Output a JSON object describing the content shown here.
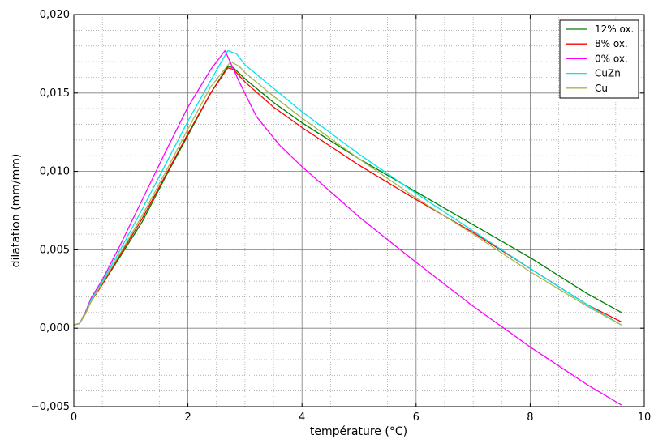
{
  "chart_data": {
    "type": "line",
    "xlabel": "température (°C)",
    "ylabel": "dilatation (mm/mm)",
    "xlim": [
      0,
      10
    ],
    "ylim": [
      -0.005,
      0.02
    ],
    "x_ticks": [
      0,
      2,
      4,
      6,
      8,
      10
    ],
    "x_tick_labels": [
      "0",
      "2",
      "4",
      "6",
      "8",
      "10"
    ],
    "y_ticks": [
      -0.005,
      0,
      0.005,
      0.01,
      0.015,
      0.02
    ],
    "y_tick_labels": [
      "−0,005",
      "0,000",
      "0,005",
      "0,010",
      "0,015",
      "0,020"
    ],
    "grid": "major solid + minor dotted",
    "legend_position": "top-right",
    "series": [
      {
        "name": "12% ox.",
        "color": "#007f00",
        "points": [
          [
            0,
            0.0002
          ],
          [
            0.1,
            0.0003
          ],
          [
            0.2,
            0.0009
          ],
          [
            0.3,
            0.0017
          ],
          [
            0.5,
            0.0028
          ],
          [
            0.8,
            0.0045
          ],
          [
            1.2,
            0.0068
          ],
          [
            1.6,
            0.0096
          ],
          [
            2.0,
            0.0123
          ],
          [
            2.4,
            0.015
          ],
          [
            2.7,
            0.0167
          ],
          [
            2.8,
            0.0166
          ],
          [
            3.0,
            0.0159
          ],
          [
            3.5,
            0.0144
          ],
          [
            4.0,
            0.0131
          ],
          [
            5.0,
            0.0108
          ],
          [
            6.0,
            0.0087
          ],
          [
            7.0,
            0.0066
          ],
          [
            8.0,
            0.0045
          ],
          [
            9.0,
            0.0022
          ],
          [
            9.6,
            0.001
          ]
        ]
      },
      {
        "name": "8% ox.",
        "color": "#ff0000",
        "points": [
          [
            0,
            0.0002
          ],
          [
            0.1,
            0.0003
          ],
          [
            0.2,
            0.0009
          ],
          [
            0.3,
            0.0017
          ],
          [
            0.5,
            0.0028
          ],
          [
            0.8,
            0.0046
          ],
          [
            1.2,
            0.007
          ],
          [
            1.6,
            0.0097
          ],
          [
            2.0,
            0.0124
          ],
          [
            2.4,
            0.015
          ],
          [
            2.7,
            0.0166
          ],
          [
            2.8,
            0.0165
          ],
          [
            3.0,
            0.0157
          ],
          [
            3.5,
            0.0141
          ],
          [
            4.0,
            0.0128
          ],
          [
            5.0,
            0.0104
          ],
          [
            6.0,
            0.0082
          ],
          [
            7.0,
            0.0061
          ],
          [
            8.0,
            0.0038
          ],
          [
            9.0,
            0.0015
          ],
          [
            9.6,
            0.0004
          ]
        ]
      },
      {
        "name": "0% ox.",
        "color": "#ff00ff",
        "points": [
          [
            0,
            0.0002
          ],
          [
            0.1,
            0.0003
          ],
          [
            0.2,
            0.001
          ],
          [
            0.3,
            0.0019
          ],
          [
            0.5,
            0.0031
          ],
          [
            0.8,
            0.0052
          ],
          [
            1.2,
            0.0082
          ],
          [
            1.6,
            0.0112
          ],
          [
            2.0,
            0.0141
          ],
          [
            2.4,
            0.0165
          ],
          [
            2.65,
            0.0177
          ],
          [
            2.9,
            0.0157
          ],
          [
            3.2,
            0.0135
          ],
          [
            3.6,
            0.0117
          ],
          [
            4.0,
            0.0103
          ],
          [
            5.0,
            0.0071
          ],
          [
            6.0,
            0.0042
          ],
          [
            7.0,
            0.0014
          ],
          [
            8.0,
            -0.0012
          ],
          [
            9.0,
            -0.0036
          ],
          [
            9.6,
            -0.0049
          ]
        ]
      },
      {
        "name": "CuZn",
        "color": "#00e5ee",
        "points": [
          [
            0,
            0.0002
          ],
          [
            0.1,
            0.0003
          ],
          [
            0.2,
            0.0009
          ],
          [
            0.3,
            0.0018
          ],
          [
            0.5,
            0.003
          ],
          [
            0.8,
            0.0049
          ],
          [
            1.2,
            0.0076
          ],
          [
            1.6,
            0.0104
          ],
          [
            2.0,
            0.0132
          ],
          [
            2.4,
            0.0158
          ],
          [
            2.7,
            0.0177
          ],
          [
            2.85,
            0.0175
          ],
          [
            3.0,
            0.0168
          ],
          [
            3.5,
            0.0153
          ],
          [
            4.0,
            0.0138
          ],
          [
            5.0,
            0.0111
          ],
          [
            6.0,
            0.0086
          ],
          [
            7.0,
            0.0062
          ],
          [
            8.0,
            0.0038
          ],
          [
            9.0,
            0.0015
          ],
          [
            9.6,
            0.0002
          ]
        ]
      },
      {
        "name": "Cu",
        "color": "#a3b84b",
        "points": [
          [
            0,
            0.0002
          ],
          [
            0.1,
            0.0003
          ],
          [
            0.2,
            0.0009
          ],
          [
            0.3,
            0.0017
          ],
          [
            0.5,
            0.0029
          ],
          [
            0.8,
            0.0047
          ],
          [
            1.2,
            0.0072
          ],
          [
            1.6,
            0.0099
          ],
          [
            2.0,
            0.0127
          ],
          [
            2.4,
            0.0154
          ],
          [
            2.75,
            0.017
          ],
          [
            2.9,
            0.0167
          ],
          [
            3.0,
            0.0163
          ],
          [
            3.5,
            0.0148
          ],
          [
            4.0,
            0.0134
          ],
          [
            5.0,
            0.0108
          ],
          [
            6.0,
            0.0083
          ],
          [
            7.0,
            0.006
          ],
          [
            8.0,
            0.0036
          ],
          [
            9.0,
            0.0014
          ],
          [
            9.6,
            0.0002
          ]
        ]
      }
    ]
  }
}
